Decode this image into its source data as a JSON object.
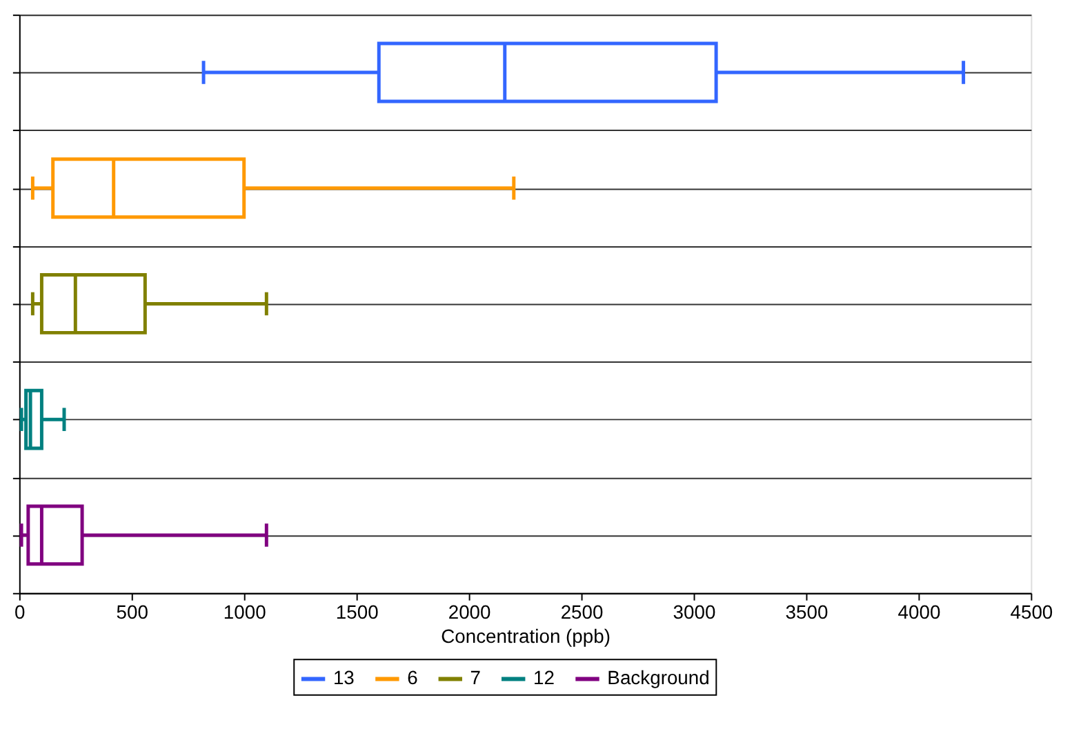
{
  "chart_data": {
    "type": "box",
    "orientation": "horizontal",
    "categories": [
      null,
      null,
      null,
      null,
      null
    ],
    "xlabel": "Concentration (ppb)",
    "xlim": [
      0,
      4500
    ],
    "xticks": [
      0,
      500,
      1000,
      1500,
      2000,
      2500,
      3000,
      3500,
      4000,
      4500
    ],
    "grid": "y",
    "legend": "bottom",
    "tick_labels": "x",
    "series": [
      {
        "name": "13",
        "color": "#3366ff",
        "boxes": [
          {
            "low": 820,
            "q1": 1600,
            "median": 2160,
            "q3": 3100,
            "high": 4200
          },
          null,
          null,
          null,
          null
        ]
      },
      {
        "name": "6",
        "color": "#ff9900",
        "boxes": [
          null,
          {
            "low": 60,
            "q1": 150,
            "median": 420,
            "q3": 1000,
            "high": 2200
          },
          null,
          null,
          null
        ]
      },
      {
        "name": "7",
        "color": "#808000",
        "boxes": [
          null,
          null,
          {
            "low": 60,
            "q1": 100,
            "median": 250,
            "q3": 560,
            "high": 1100
          },
          null,
          null
        ]
      },
      {
        "name": "12",
        "color": "#008080",
        "boxes": [
          null,
          null,
          null,
          {
            "low": 10,
            "q1": 30,
            "median": 50,
            "q3": 100,
            "high": 200
          },
          null
        ]
      },
      {
        "name": "Background",
        "color": "#800080",
        "boxes": [
          null,
          null,
          null,
          null,
          {
            "low": 10,
            "q1": 40,
            "median": 100,
            "q3": 280,
            "high": 1100
          }
        ]
      }
    ]
  }
}
